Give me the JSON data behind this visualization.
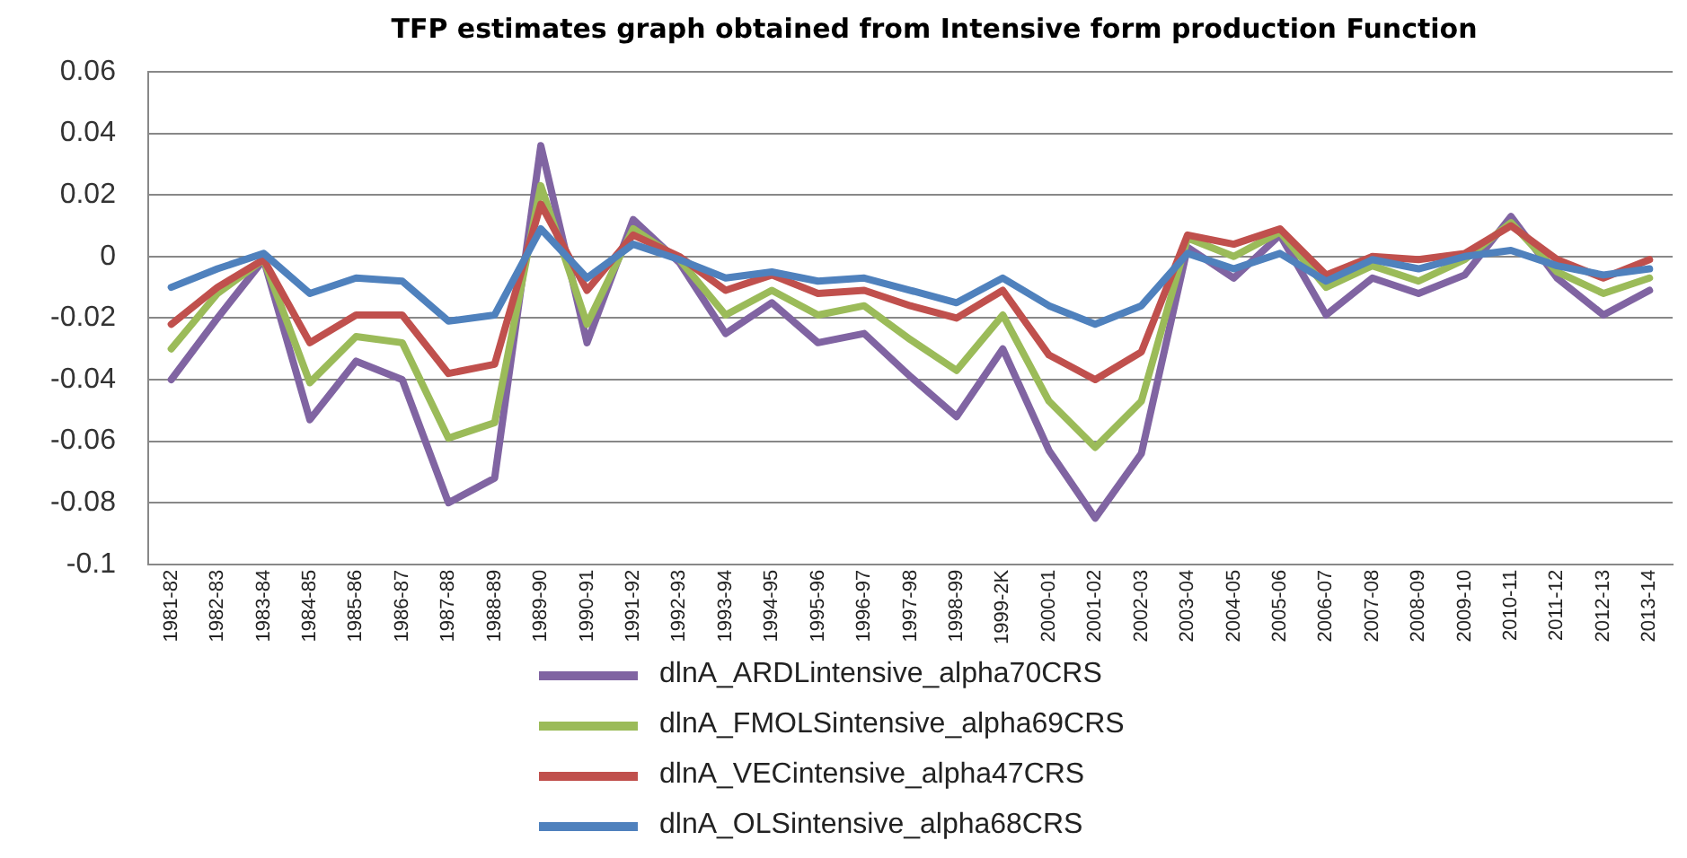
{
  "chart_data": {
    "type": "line",
    "title": "TFP estimates graph obtained from Intensive form production Function",
    "categories": [
      "1981-82",
      "1982-83",
      "1983-84",
      "1984-85",
      "1985-86",
      "1986-87",
      "1987-88",
      "1988-89",
      "1989-90",
      "1990-91",
      "1991-92",
      "1992-93",
      "1993-94",
      "1994-95",
      "1995-96",
      "1996-97",
      "1997-98",
      "1998-99",
      "1999-2K",
      "2000-01",
      "2001-02",
      "2002-03",
      "2003-04",
      "2004-05",
      "2005-06",
      "2006-07",
      "2007-08",
      "2008-09",
      "2009-10",
      "2010-11",
      "2011-12",
      "2012-13",
      "2013-14"
    ],
    "series": [
      {
        "name": "dlnA_ARDLintensive_alpha70CRS",
        "color": "#8064a2",
        "values": [
          -0.04,
          -0.02,
          -0.001,
          -0.053,
          -0.034,
          -0.04,
          -0.08,
          -0.072,
          0.036,
          -0.028,
          0.012,
          -0.002,
          -0.025,
          -0.015,
          -0.028,
          -0.025,
          -0.039,
          -0.052,
          -0.03,
          -0.063,
          -0.085,
          -0.064,
          0.003,
          -0.007,
          0.007,
          -0.019,
          -0.007,
          -0.012,
          -0.006,
          0.013,
          -0.007,
          -0.019,
          -0.011
        ]
      },
      {
        "name": "dlnA_FMOLSintensive_alpha69CRS",
        "color": "#9bbb59",
        "values": [
          -0.03,
          -0.012,
          -0.001,
          -0.041,
          -0.026,
          -0.028,
          -0.059,
          -0.054,
          0.023,
          -0.022,
          0.009,
          -0.001,
          -0.019,
          -0.011,
          -0.019,
          -0.016,
          -0.027,
          -0.037,
          -0.019,
          -0.047,
          -0.062,
          -0.047,
          0.006,
          0,
          0.008,
          -0.01,
          -0.003,
          -0.008,
          -0.001,
          0.011,
          -0.005,
          -0.012,
          -0.007
        ]
      },
      {
        "name": "dlnA_VECintensive_alpha47CRS",
        "color": "#c0504d",
        "values": [
          -0.022,
          -0.01,
          -0.001,
          -0.028,
          -0.019,
          -0.019,
          -0.038,
          -0.035,
          0.017,
          -0.011,
          0.007,
          0,
          -0.011,
          -0.006,
          -0.012,
          -0.011,
          -0.016,
          -0.02,
          -0.011,
          -0.032,
          -0.04,
          -0.031,
          0.007,
          0.004,
          0.009,
          -0.006,
          0,
          -0.001,
          0.001,
          0.01,
          -0.001,
          -0.007,
          -0.001
        ]
      },
      {
        "name": "dlnA_OLSintensive_alpha68CRS",
        "color": "#4f81bd",
        "values": [
          -0.01,
          -0.004,
          0.001,
          -0.012,
          -0.007,
          -0.008,
          -0.021,
          -0.019,
          0.009,
          -0.007,
          0.004,
          -0.001,
          -0.007,
          -0.005,
          -0.008,
          -0.007,
          -0.011,
          -0.015,
          -0.007,
          -0.016,
          -0.022,
          -0.016,
          0.001,
          -0.004,
          0.001,
          -0.008,
          -0.001,
          -0.004,
          0,
          0.002,
          -0.003,
          -0.006,
          -0.004
        ]
      }
    ],
    "ylim": [
      -0.1,
      0.06
    ],
    "yticks": [
      -0.1,
      -0.08,
      -0.06,
      -0.04,
      -0.02,
      0,
      0.02,
      0.04,
      0.06
    ],
    "grid": "y",
    "legend": "bottom",
    "marker": "none",
    "line_style": "solid"
  }
}
